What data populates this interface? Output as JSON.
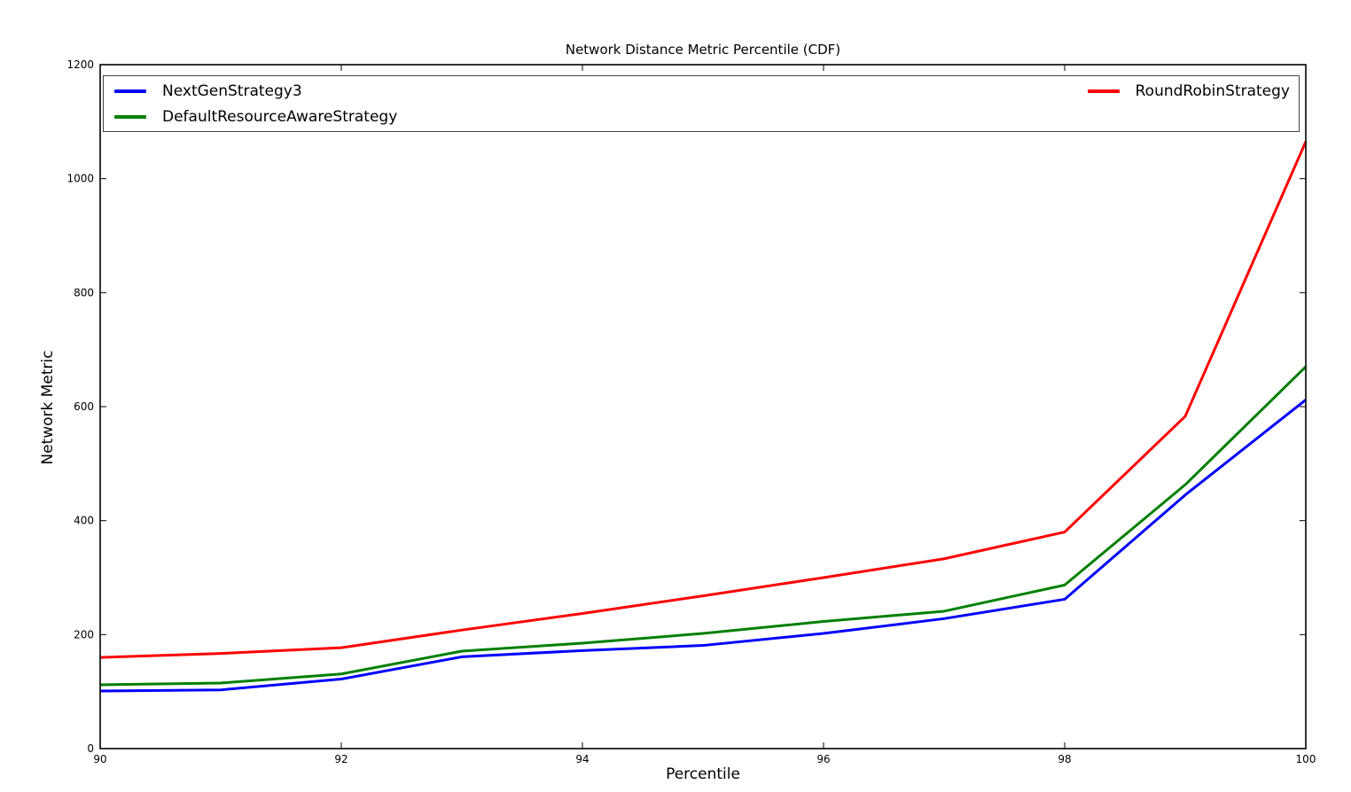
{
  "chart_data": {
    "type": "line",
    "title": "Network Distance Metric Percentile (CDF)",
    "xlabel": "Percentile",
    "ylabel": "Network Metric",
    "xlim": [
      90,
      100
    ],
    "ylim": [
      0,
      1200
    ],
    "xticks": [
      90,
      92,
      94,
      96,
      98,
      100
    ],
    "yticks": [
      0,
      200,
      400,
      600,
      800,
      1000,
      1200
    ],
    "grid": false,
    "legend_position": "top inside, full plot width, two columns",
    "x": [
      90,
      91,
      92,
      93,
      94,
      95,
      96,
      97,
      98,
      99,
      100
    ],
    "series": [
      {
        "name": "NextGenStrategy3",
        "color": "#0000ff",
        "values": [
          101,
          103,
          122,
          161,
          172,
          181,
          202,
          228,
          262,
          445,
          612
        ]
      },
      {
        "name": "DefaultResourceAwareStrategy",
        "color": "#008000",
        "values": [
          112,
          115,
          131,
          171,
          185,
          202,
          223,
          241,
          287,
          463,
          670
        ]
      },
      {
        "name": "RoundRobinStrategy",
        "color": "#ff0000",
        "values": [
          160,
          167,
          177,
          208,
          237,
          268,
          300,
          333,
          380,
          583,
          1065
        ]
      }
    ]
  }
}
